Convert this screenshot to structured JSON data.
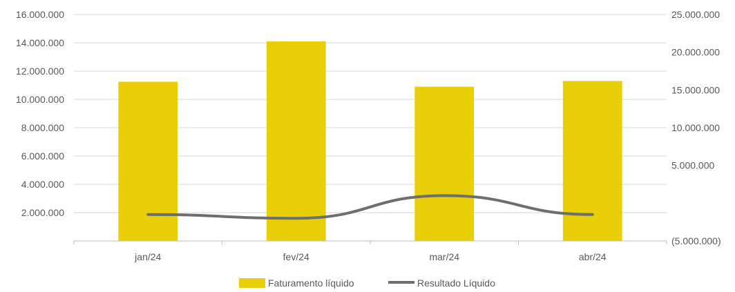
{
  "chart_data": {
    "type": "bar",
    "categories": [
      "jan/24",
      "fev/24",
      "mar/24",
      "abr/24"
    ],
    "series": [
      {
        "name": "Faturamento líquido",
        "type": "bar",
        "axis": "left",
        "color": "#e8cf0a",
        "values": [
          11250000,
          14100000,
          10900000,
          11300000
        ]
      },
      {
        "name": "Resultado Líquido",
        "type": "line",
        "axis": "right",
        "color": "#6e6e6e",
        "values": [
          -1500000,
          -2000000,
          1000000,
          -1500000
        ]
      }
    ],
    "left_axis": {
      "ylim": [
        0,
        16000000
      ],
      "ticks": [
        2000000,
        4000000,
        6000000,
        8000000,
        10000000,
        12000000,
        14000000,
        16000000
      ],
      "tick_labels": [
        "2.000.000",
        "4.000.000",
        "6.000.000",
        "8.000.000",
        "10.000.000",
        "12.000.000",
        "14.000.000",
        "16.000.000"
      ]
    },
    "right_axis": {
      "ylim": [
        -5000000,
        25000000
      ],
      "ticks": [
        -5000000,
        5000000,
        10000000,
        15000000,
        20000000,
        25000000
      ],
      "tick_labels": [
        "(5.000.000)",
        "5.000.000",
        "10.000.000",
        "15.000.000",
        "20.000.000",
        "25.000.000"
      ]
    },
    "grid": true,
    "legend_position": "bottom-center"
  }
}
